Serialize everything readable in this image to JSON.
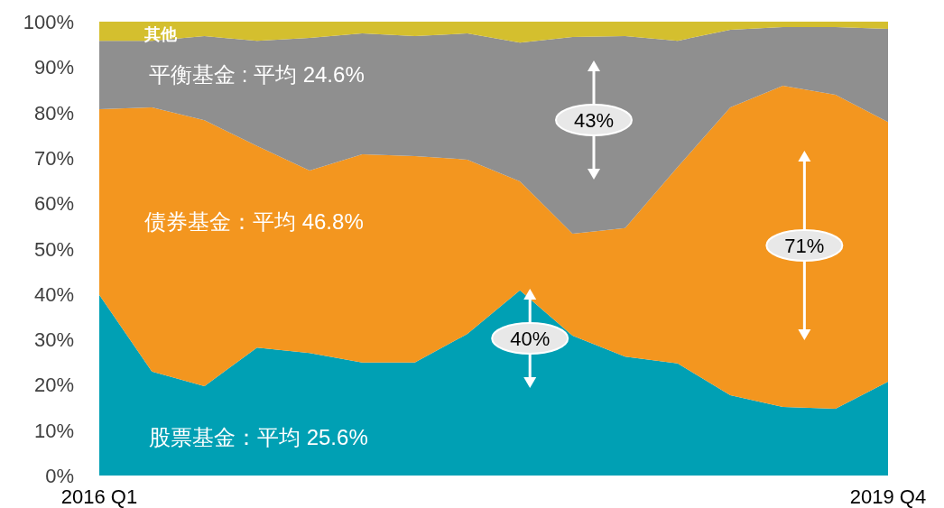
{
  "chart_data": {
    "type": "area",
    "stacked": true,
    "categories": [
      "2016 Q1",
      null,
      null,
      null,
      null,
      null,
      null,
      null,
      null,
      null,
      null,
      null,
      null,
      null,
      null,
      "2019 Q4"
    ],
    "ylim": [
      0,
      100
    ],
    "yticks": [
      {
        "value": 0,
        "label": "0%"
      },
      {
        "value": 10,
        "label": "10%"
      },
      {
        "value": 20,
        "label": "20%"
      },
      {
        "value": 30,
        "label": "30%"
      },
      {
        "value": 40,
        "label": "40%"
      },
      {
        "value": 50,
        "label": "50%"
      },
      {
        "value": 60,
        "label": "60%"
      },
      {
        "value": 70,
        "label": "70%"
      },
      {
        "value": 80,
        "label": "80%"
      },
      {
        "value": 90,
        "label": "90%"
      },
      {
        "value": 100,
        "label": "100%"
      }
    ],
    "series": [
      {
        "name": "股票基金：平均 25.6%",
        "color": "#00a0b4",
        "values": [
          39.8,
          22.9,
          19.7,
          28.2,
          27.0,
          24.9,
          24.9,
          31.2,
          40.8,
          30.8,
          26.2,
          24.7,
          17.7,
          15.1,
          14.7,
          20.7
        ]
      },
      {
        "name": "债券基金：平均 46.8%",
        "color": "#f3961f",
        "values": [
          40.9,
          58.2,
          58.6,
          44.4,
          40.2,
          45.9,
          45.5,
          38.4,
          24.0,
          22.5,
          28.3,
          43.3,
          63.4,
          70.8,
          69.2,
          57.2
        ]
      },
      {
        "name": "平衡基金 : 平均 24.6%",
        "color": "#8f8f8f",
        "values": [
          15.1,
          14.7,
          18.5,
          23.2,
          29.2,
          26.6,
          26.4,
          27.8,
          30.6,
          43.3,
          42.3,
          27.8,
          17.1,
          12.9,
          14.9,
          20.5
        ]
      },
      {
        "name": "其他",
        "color": "#d4bf2e",
        "values": [
          4.2,
          4.2,
          3.2,
          4.2,
          3.6,
          2.6,
          3.2,
          2.6,
          4.6,
          3.4,
          3.2,
          4.2,
          1.8,
          1.2,
          1.2,
          1.6
        ]
      }
    ],
    "annotations": [
      "43%",
      "40%",
      "71%"
    ]
  }
}
